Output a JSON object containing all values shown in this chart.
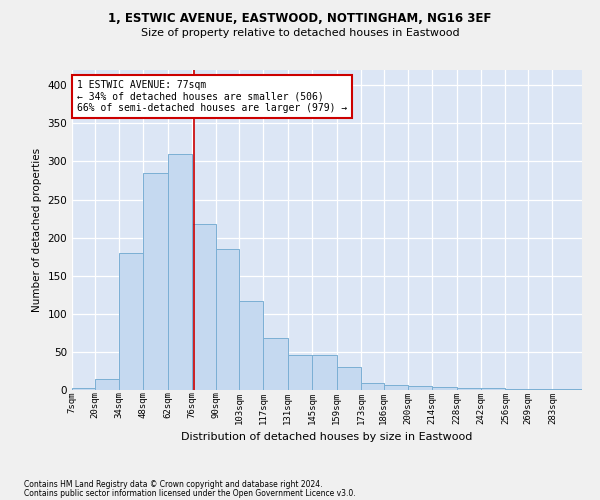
{
  "title_line1": "1, ESTWIC AVENUE, EASTWOOD, NOTTINGHAM, NG16 3EF",
  "title_line2": "Size of property relative to detached houses in Eastwood",
  "xlabel": "Distribution of detached houses by size in Eastwood",
  "ylabel": "Number of detached properties",
  "bar_color": "#c5d9f0",
  "bar_edge_color": "#7bafd4",
  "background_color": "#dce6f5",
  "grid_color": "#ffffff",
  "annotation_box_color": "#cc0000",
  "annotation_text": "1 ESTWIC AVENUE: 77sqm\n← 34% of detached houses are smaller (506)\n66% of semi-detached houses are larger (979) →",
  "property_line_x": 77,
  "categories": [
    "7sqm",
    "20sqm",
    "34sqm",
    "48sqm",
    "62sqm",
    "76sqm",
    "90sqm",
    "103sqm",
    "117sqm",
    "131sqm",
    "145sqm",
    "159sqm",
    "173sqm",
    "186sqm",
    "200sqm",
    "214sqm",
    "228sqm",
    "242sqm",
    "256sqm",
    "269sqm",
    "283sqm"
  ],
  "bin_edges": [
    7,
    20,
    34,
    48,
    62,
    76,
    90,
    103,
    117,
    131,
    145,
    159,
    173,
    186,
    200,
    214,
    228,
    242,
    256,
    269,
    283,
    300
  ],
  "values": [
    2,
    14,
    180,
    285,
    310,
    218,
    185,
    117,
    68,
    46,
    46,
    30,
    9,
    6,
    5,
    4,
    3,
    2,
    1,
    1,
    1
  ],
  "ylim": [
    0,
    420
  ],
  "yticks": [
    0,
    50,
    100,
    150,
    200,
    250,
    300,
    350,
    400
  ],
  "footnote1": "Contains HM Land Registry data © Crown copyright and database right 2024.",
  "footnote2": "Contains public sector information licensed under the Open Government Licence v3.0.",
  "fig_width": 6.0,
  "fig_height": 5.0,
  "dpi": 100
}
